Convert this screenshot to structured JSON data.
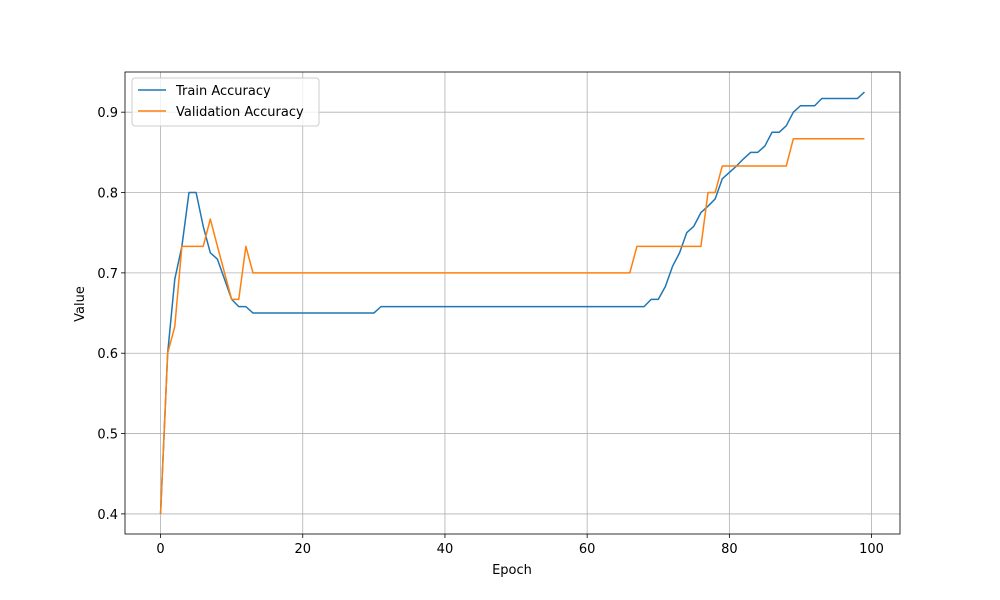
{
  "chart_data": {
    "type": "line",
    "title": "",
    "xlabel": "Epoch",
    "ylabel": "Value",
    "xlim": [
      -5,
      104
    ],
    "ylim": [
      0.375,
      0.95
    ],
    "xticks": [
      0,
      20,
      40,
      60,
      80,
      100
    ],
    "yticks": [
      0.4,
      0.5,
      0.6,
      0.7,
      0.8,
      0.9
    ],
    "grid": true,
    "legend": "top-left",
    "x": [
      0,
      1,
      2,
      3,
      4,
      5,
      6,
      7,
      8,
      9,
      10,
      11,
      12,
      13,
      14,
      15,
      16,
      17,
      18,
      19,
      20,
      21,
      22,
      23,
      24,
      25,
      26,
      27,
      28,
      29,
      30,
      31,
      32,
      33,
      34,
      35,
      36,
      37,
      38,
      39,
      40,
      41,
      42,
      43,
      44,
      45,
      46,
      47,
      48,
      49,
      50,
      51,
      52,
      53,
      54,
      55,
      56,
      57,
      58,
      59,
      60,
      61,
      62,
      63,
      64,
      65,
      66,
      67,
      68,
      69,
      70,
      71,
      72,
      73,
      74,
      75,
      76,
      77,
      78,
      79,
      80,
      81,
      82,
      83,
      84,
      85,
      86,
      87,
      88,
      89,
      90,
      91,
      92,
      93,
      94,
      95,
      96,
      97,
      98,
      99
    ],
    "series": [
      {
        "name": "Train Accuracy",
        "color": "#1f77b4",
        "values": [
          0.4,
          0.6,
          0.692,
          0.733,
          0.8,
          0.8,
          0.758,
          0.725,
          0.717,
          0.692,
          0.667,
          0.658,
          0.658,
          0.65,
          0.65,
          0.65,
          0.65,
          0.65,
          0.65,
          0.65,
          0.65,
          0.65,
          0.65,
          0.65,
          0.65,
          0.65,
          0.65,
          0.65,
          0.65,
          0.65,
          0.65,
          0.658,
          0.658,
          0.658,
          0.658,
          0.658,
          0.658,
          0.658,
          0.658,
          0.658,
          0.658,
          0.658,
          0.658,
          0.658,
          0.658,
          0.658,
          0.658,
          0.658,
          0.658,
          0.658,
          0.658,
          0.658,
          0.658,
          0.658,
          0.658,
          0.658,
          0.658,
          0.658,
          0.658,
          0.658,
          0.658,
          0.658,
          0.658,
          0.658,
          0.658,
          0.658,
          0.658,
          0.658,
          0.658,
          0.667,
          0.667,
          0.683,
          0.708,
          0.725,
          0.75,
          0.758,
          0.775,
          0.783,
          0.792,
          0.817,
          0.825,
          0.833,
          0.842,
          0.85,
          0.85,
          0.858,
          0.875,
          0.875,
          0.883,
          0.9,
          0.908,
          0.908,
          0.908,
          0.917,
          0.917,
          0.917,
          0.917,
          0.917,
          0.917,
          0.925
        ]
      },
      {
        "name": "Validation Accuracy",
        "color": "#ff7f0e",
        "values": [
          0.4,
          0.6,
          0.633,
          0.733,
          0.733,
          0.733,
          0.733,
          0.767,
          0.733,
          0.7,
          0.667,
          0.667,
          0.733,
          0.7,
          0.7,
          0.7,
          0.7,
          0.7,
          0.7,
          0.7,
          0.7,
          0.7,
          0.7,
          0.7,
          0.7,
          0.7,
          0.7,
          0.7,
          0.7,
          0.7,
          0.7,
          0.7,
          0.7,
          0.7,
          0.7,
          0.7,
          0.7,
          0.7,
          0.7,
          0.7,
          0.7,
          0.7,
          0.7,
          0.7,
          0.7,
          0.7,
          0.7,
          0.7,
          0.7,
          0.7,
          0.7,
          0.7,
          0.7,
          0.7,
          0.7,
          0.7,
          0.7,
          0.7,
          0.7,
          0.7,
          0.7,
          0.7,
          0.7,
          0.7,
          0.7,
          0.7,
          0.7,
          0.733,
          0.733,
          0.733,
          0.733,
          0.733,
          0.733,
          0.733,
          0.733,
          0.733,
          0.733,
          0.8,
          0.8,
          0.833,
          0.833,
          0.833,
          0.833,
          0.833,
          0.833,
          0.833,
          0.833,
          0.833,
          0.833,
          0.867,
          0.867,
          0.867,
          0.867,
          0.867,
          0.867,
          0.867,
          0.867,
          0.867,
          0.867,
          0.867
        ]
      }
    ]
  }
}
